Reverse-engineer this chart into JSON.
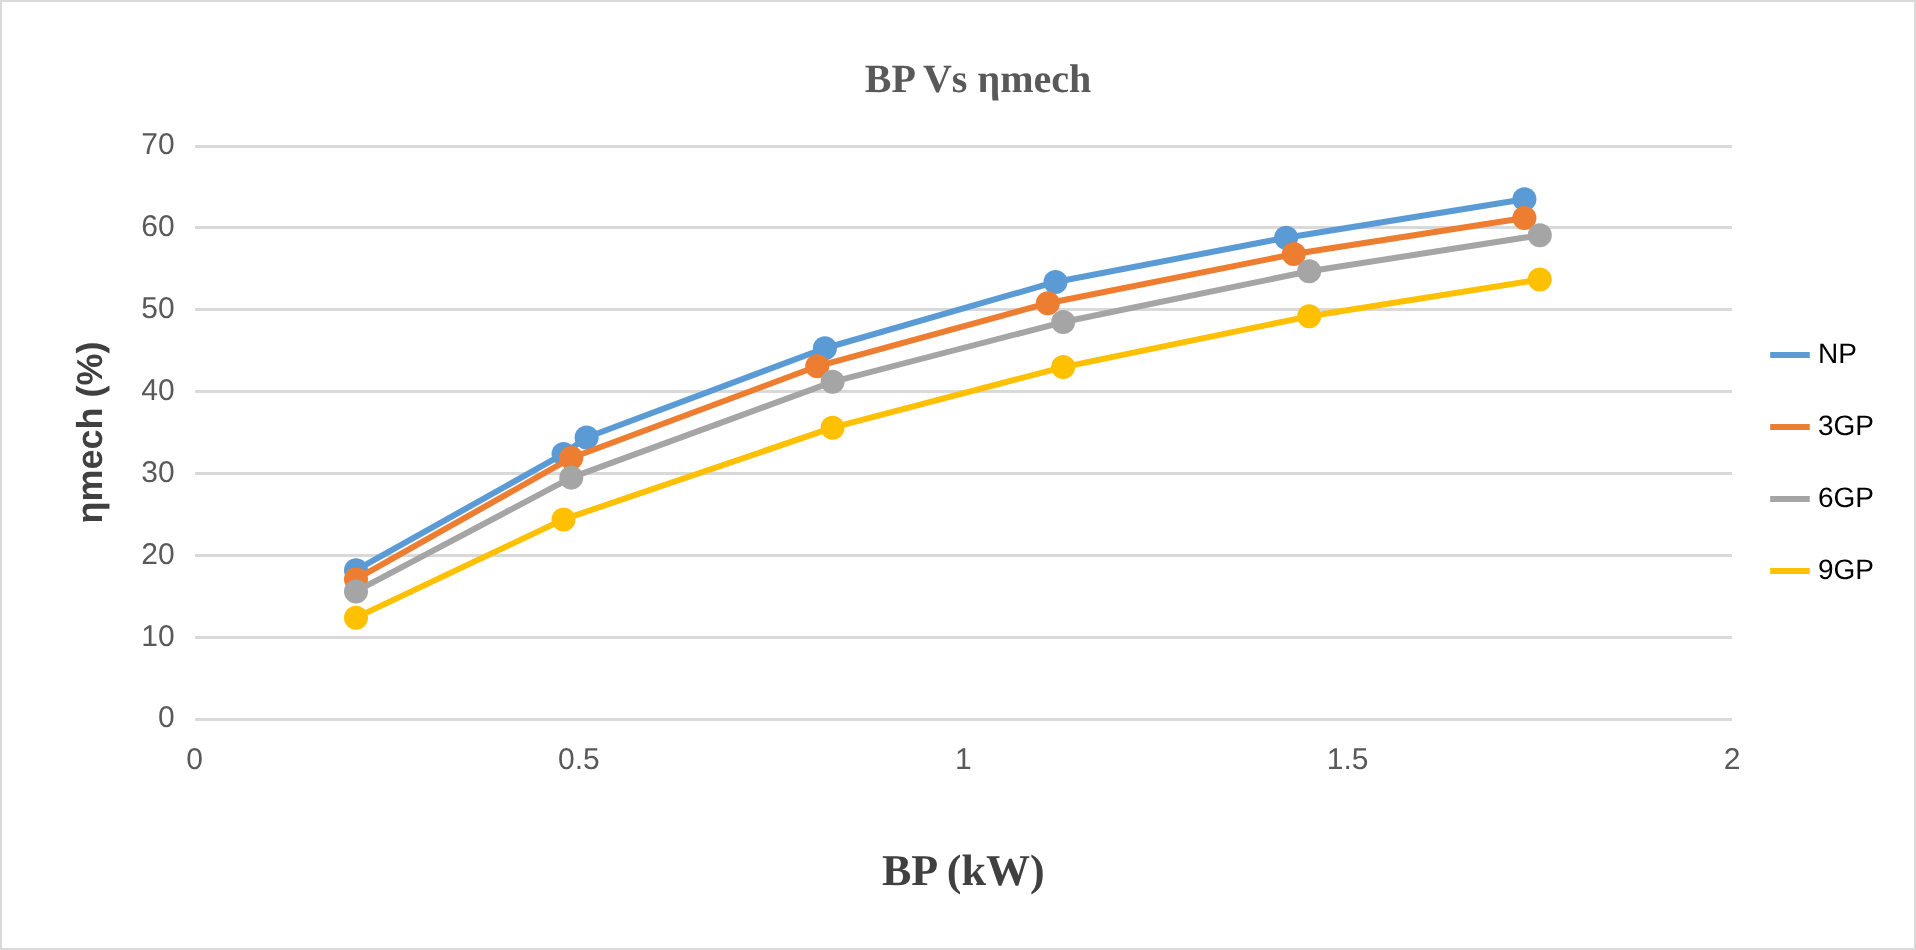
{
  "chart_data": {
    "type": "line",
    "title": "BP Vs ηmech",
    "xlabel": "BP (kW)",
    "ylabel": "ηmech (%)",
    "xlim": [
      0,
      2
    ],
    "xticks": [
      0,
      0.5,
      1,
      1.5,
      2
    ],
    "ylim": [
      0,
      70
    ],
    "yticks": [
      0,
      10,
      20,
      30,
      40,
      50,
      60,
      70
    ],
    "grid": "y",
    "legend": "right",
    "marker": "circle",
    "line_style": "solid",
    "series": [
      {
        "name": "NP",
        "color": "#5b9bd5",
        "x": [
          0.21,
          0.48,
          0.51,
          0.82,
          1.12,
          1.42,
          1.73
        ],
        "values": [
          18.2,
          32.4,
          34.4,
          45.3,
          53.4,
          58.8,
          63.5
        ]
      },
      {
        "name": "3GP",
        "color": "#ed7d31",
        "x": [
          0.21,
          0.49,
          0.81,
          1.11,
          1.43,
          1.73
        ],
        "values": [
          17.1,
          31.9,
          43.1,
          50.8,
          56.8,
          61.2
        ]
      },
      {
        "name": "6GP",
        "color": "#a5a5a5",
        "x": [
          0.21,
          0.49,
          0.83,
          1.13,
          1.45,
          1.75
        ],
        "values": [
          15.6,
          29.5,
          41.2,
          48.5,
          54.7,
          59.1
        ]
      },
      {
        "name": "9GP",
        "color": "#ffc000",
        "x": [
          0.21,
          0.48,
          0.83,
          1.13,
          1.45,
          1.75
        ],
        "values": [
          12.4,
          24.4,
          35.6,
          43.0,
          49.2,
          53.7
        ]
      }
    ]
  }
}
